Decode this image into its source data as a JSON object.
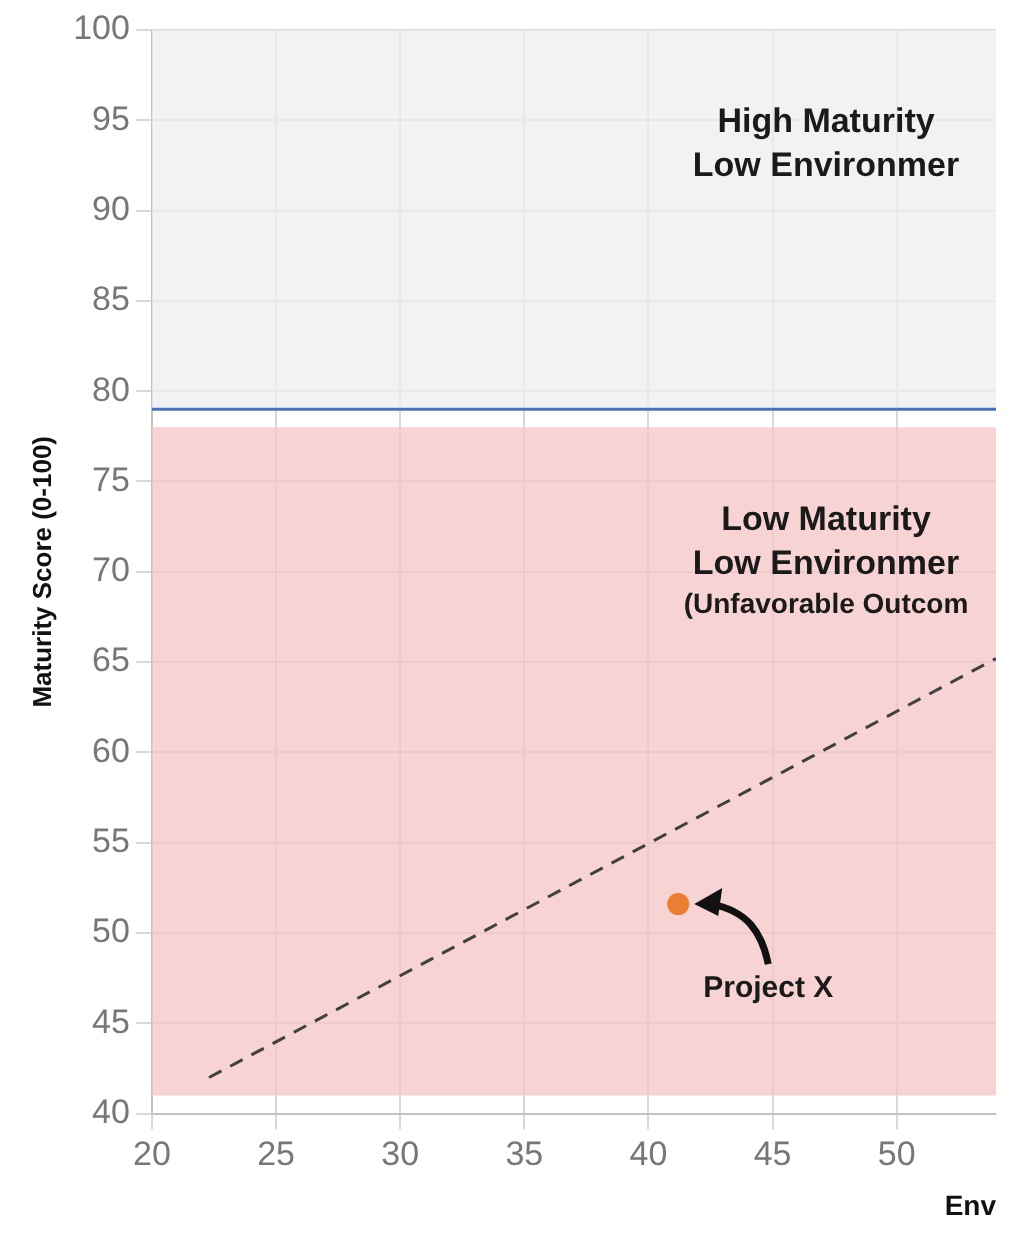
{
  "chart_data": {
    "type": "scatter",
    "ylabel": "Maturity Score (0-100)",
    "xlabel": "Env",
    "xlim": [
      20,
      54
    ],
    "xticks": [
      20,
      25,
      30,
      35,
      40,
      45,
      50
    ],
    "ylim": [
      40,
      100
    ],
    "yticks": [
      40,
      45,
      50,
      55,
      60,
      65,
      70,
      75,
      80,
      85,
      90,
      95,
      100
    ],
    "grid": true,
    "legend": false,
    "marker": "circle",
    "series": [
      {
        "type": "line",
        "color": "#404040",
        "line_style": "dashed",
        "marker": "none",
        "x": [
          22.3,
          54
        ],
        "values": [
          42,
          65.2
        ]
      },
      {
        "color": "#ed7d31",
        "x": [
          41.2
        ],
        "values": [
          51.6
        ]
      }
    ],
    "ref_lines": [
      {
        "axis": "y",
        "value": 79,
        "color": "#4472c4"
      }
    ],
    "bands": [
      {
        "axis": "y",
        "from": 79,
        "to": 100,
        "color": "#eeeeee",
        "label": "High Maturity\nLow Environmer"
      },
      {
        "axis": "y",
        "from": 41,
        "to": 78,
        "color": "#f6c4c6",
        "label": "Low Maturity\nLow Environmer\n(Unfavorable Outcom"
      }
    ],
    "annotations": [
      {
        "text": "Project X",
        "x": 41.2,
        "y": 51.6
      }
    ]
  }
}
